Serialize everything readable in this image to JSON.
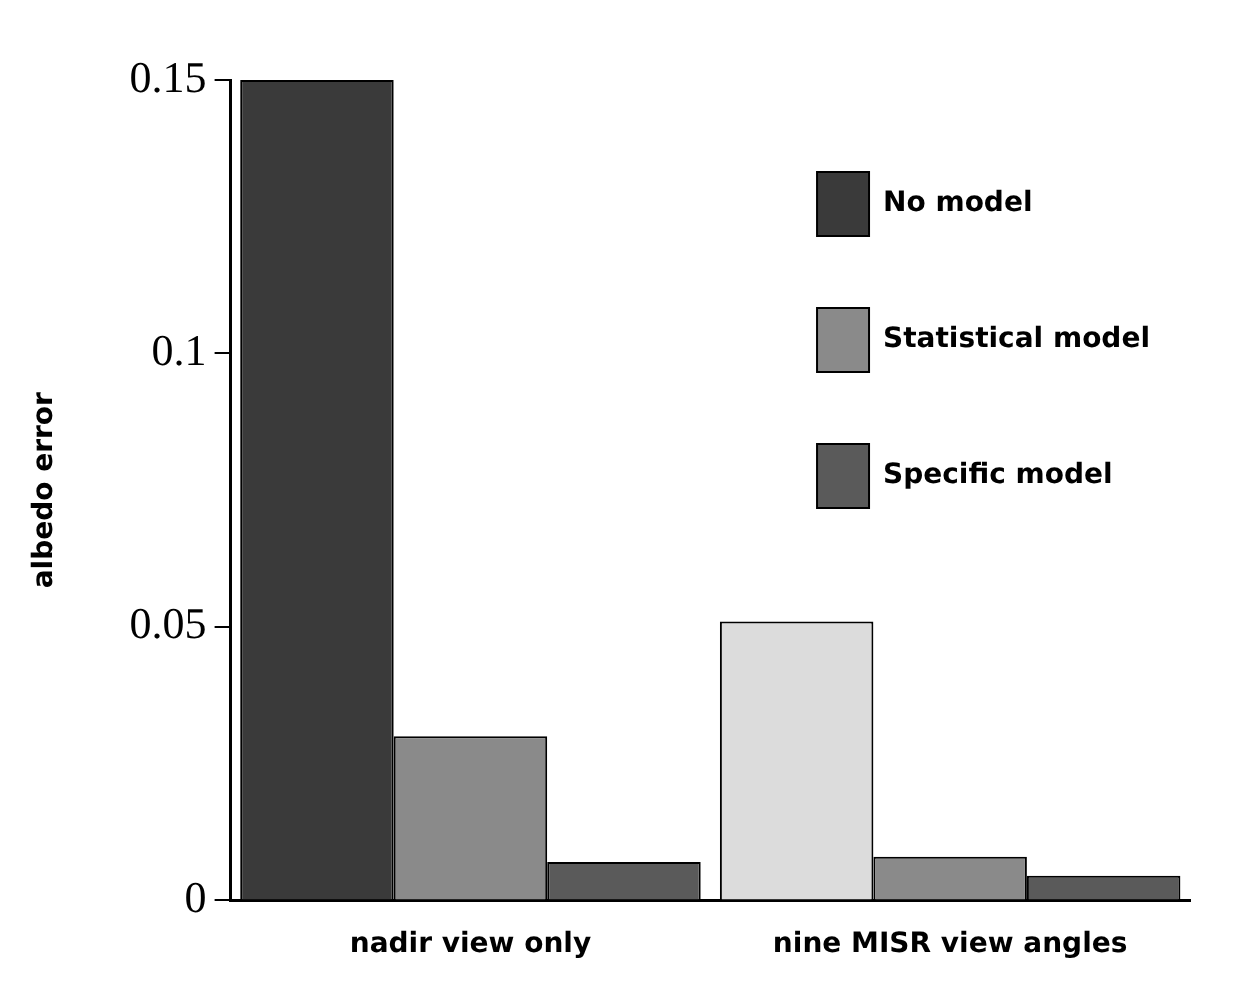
{
  "chart_data": {
    "type": "bar",
    "ylabel": "albedo error",
    "categories": [
      "nadir view only",
      "nine MISR view angles"
    ],
    "series": [
      {
        "name": "No model",
        "colors": [
          "#3a3a3a",
          "#dcdcdc"
        ],
        "values": [
          0.15,
          0.051
        ]
      },
      {
        "name": "Statistical model",
        "color": "#8a8a8a",
        "values": [
          0.03,
          0.008
        ]
      },
      {
        "name": "Specific model",
        "color": "#5a5a5a",
        "values": [
          0.007,
          0.0045
        ]
      }
    ],
    "ylim": [
      0,
      0.15
    ],
    "yticks": [
      0,
      0.05,
      0.1,
      0.15
    ],
    "grid": false,
    "legend": "top right"
  }
}
